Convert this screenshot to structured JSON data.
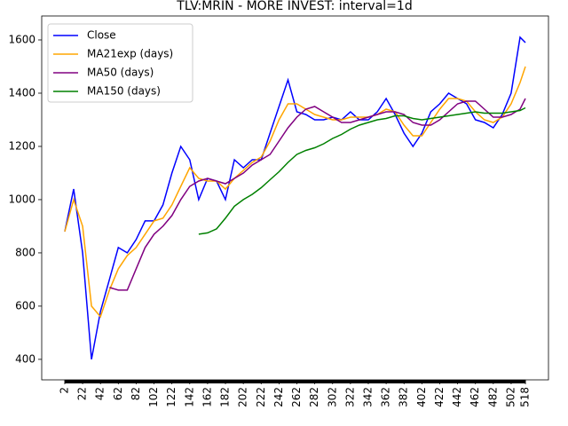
{
  "chart_data": {
    "type": "line",
    "title": "TLV:MRIN - MORE INVEST: interval=1d",
    "x": [
      2,
      12,
      22,
      32,
      42,
      52,
      62,
      72,
      82,
      92,
      102,
      112,
      122,
      132,
      142,
      152,
      162,
      172,
      182,
      192,
      202,
      212,
      222,
      232,
      242,
      252,
      262,
      272,
      282,
      292,
      302,
      312,
      322,
      332,
      342,
      352,
      362,
      372,
      382,
      392,
      402,
      412,
      422,
      432,
      442,
      452,
      462,
      472,
      482,
      492,
      502,
      512,
      518
    ],
    "series": [
      {
        "name": "Close",
        "color": "#0000ff",
        "values": [
          880,
          1040,
          800,
          400,
          580,
          700,
          820,
          800,
          850,
          920,
          920,
          980,
          1100,
          1200,
          1150,
          1000,
          1080,
          1070,
          1000,
          1150,
          1120,
          1150,
          1150,
          1250,
          1350,
          1450,
          1330,
          1320,
          1300,
          1300,
          1310,
          1300,
          1330,
          1300,
          1300,
          1330,
          1380,
          1320,
          1250,
          1200,
          1250,
          1330,
          1360,
          1400,
          1380,
          1360,
          1300,
          1290,
          1270,
          1320,
          1400,
          1610,
          1590
        ]
      },
      {
        "name": "MA21exp (days)",
        "color": "#ffa500",
        "values": [
          880,
          1000,
          900,
          600,
          560,
          660,
          740,
          790,
          820,
          870,
          920,
          930,
          980,
          1050,
          1120,
          1080,
          1070,
          1070,
          1040,
          1080,
          1110,
          1140,
          1160,
          1220,
          1300,
          1360,
          1360,
          1340,
          1320,
          1310,
          1300,
          1300,
          1310,
          1310,
          1310,
          1320,
          1340,
          1330,
          1280,
          1240,
          1240,
          1290,
          1340,
          1380,
          1380,
          1370,
          1330,
          1300,
          1290,
          1310,
          1360,
          1440,
          1500
        ]
      },
      {
        "name": "MA50 (days)",
        "color": "#800080",
        "values": [
          null,
          null,
          null,
          null,
          null,
          670,
          660,
          660,
          740,
          820,
          870,
          900,
          940,
          1000,
          1050,
          1070,
          1080,
          1070,
          1060,
          1080,
          1100,
          1130,
          1150,
          1170,
          1220,
          1270,
          1310,
          1340,
          1350,
          1330,
          1310,
          1290,
          1290,
          1300,
          1310,
          1320,
          1330,
          1330,
          1320,
          1290,
          1280,
          1280,
          1300,
          1330,
          1360,
          1370,
          1370,
          1340,
          1310,
          1310,
          1320,
          1340,
          1380
        ]
      },
      {
        "name": "MA150 (days)",
        "color": "#008000",
        "values": [
          null,
          null,
          null,
          null,
          null,
          null,
          null,
          null,
          null,
          null,
          null,
          null,
          null,
          null,
          null,
          870,
          875,
          890,
          930,
          975,
          1000,
          1020,
          1045,
          1075,
          1105,
          1140,
          1170,
          1185,
          1195,
          1210,
          1230,
          1245,
          1265,
          1280,
          1290,
          1300,
          1305,
          1315,
          1315,
          1305,
          1300,
          1305,
          1310,
          1315,
          1320,
          1325,
          1330,
          1325,
          1325,
          1325,
          1330,
          1335,
          1345
        ]
      }
    ],
    "xlim": [
      -23.8,
      543.8
    ],
    "xticks": [
      2,
      22,
      42,
      62,
      82,
      102,
      122,
      142,
      162,
      182,
      202,
      222,
      242,
      262,
      282,
      302,
      322,
      342,
      362,
      382,
      402,
      422,
      442,
      462,
      482,
      502,
      518
    ],
    "ylim": [
      323,
      1690
    ],
    "yticks": [
      400,
      600,
      800,
      1000,
      1200,
      1400,
      1600
    ],
    "legend": "upper left"
  }
}
